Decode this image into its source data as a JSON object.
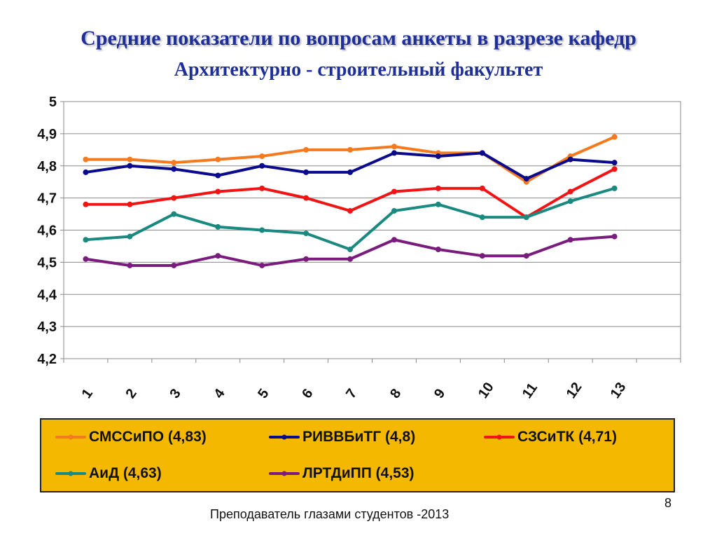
{
  "slide": {
    "title": "Средние показатели по вопросам  анкеты  в разрезе кафедр",
    "subtitle": "Архитектурно - строительный факультет",
    "footer": "Преподаватель глазами студентов -2013",
    "page_number": "8"
  },
  "chart_data": {
    "type": "line",
    "title": "",
    "xlabel": "",
    "ylabel": "",
    "categories": [
      "1",
      "2",
      "3",
      "4",
      "5",
      "6",
      "7",
      "8",
      "9",
      "10",
      "11",
      "12",
      "13"
    ],
    "ylim": [
      4.2,
      5
    ],
    "yticks": [
      "4,2",
      "4,3",
      "4,4",
      "4,5",
      "4,6",
      "4,7",
      "4,8",
      "4,9",
      "5"
    ],
    "grid": true,
    "legend_position": "bottom",
    "series": [
      {
        "name": "СМССиПО (4,83)",
        "color": "#f47a20",
        "values": [
          4.82,
          4.82,
          4.81,
          4.82,
          4.83,
          4.85,
          4.85,
          4.86,
          4.84,
          4.84,
          4.75,
          4.83,
          4.89
        ]
      },
      {
        "name": "РИВВБиТГ (4,8)",
        "color": "#0a0a8c",
        "values": [
          4.78,
          4.8,
          4.79,
          4.77,
          4.8,
          4.78,
          4.78,
          4.84,
          4.83,
          4.84,
          4.76,
          4.82,
          4.81
        ]
      },
      {
        "name": "СЗСиТК (4,71)",
        "color": "#f01414",
        "values": [
          4.68,
          4.68,
          4.7,
          4.72,
          4.73,
          4.7,
          4.66,
          4.72,
          4.73,
          4.73,
          4.64,
          4.72,
          4.79
        ]
      },
      {
        "name": "АиД (4,63)",
        "color": "#1a8a80",
        "values": [
          4.57,
          4.58,
          4.65,
          4.61,
          4.6,
          4.59,
          4.54,
          4.66,
          4.68,
          4.64,
          4.64,
          4.69,
          4.73
        ]
      },
      {
        "name": "ЛРТДиПП (4,53)",
        "color": "#7a1c7e",
        "values": [
          4.51,
          4.49,
          4.49,
          4.52,
          4.49,
          4.51,
          4.51,
          4.57,
          4.54,
          4.52,
          4.52,
          4.57,
          4.58
        ]
      }
    ]
  }
}
